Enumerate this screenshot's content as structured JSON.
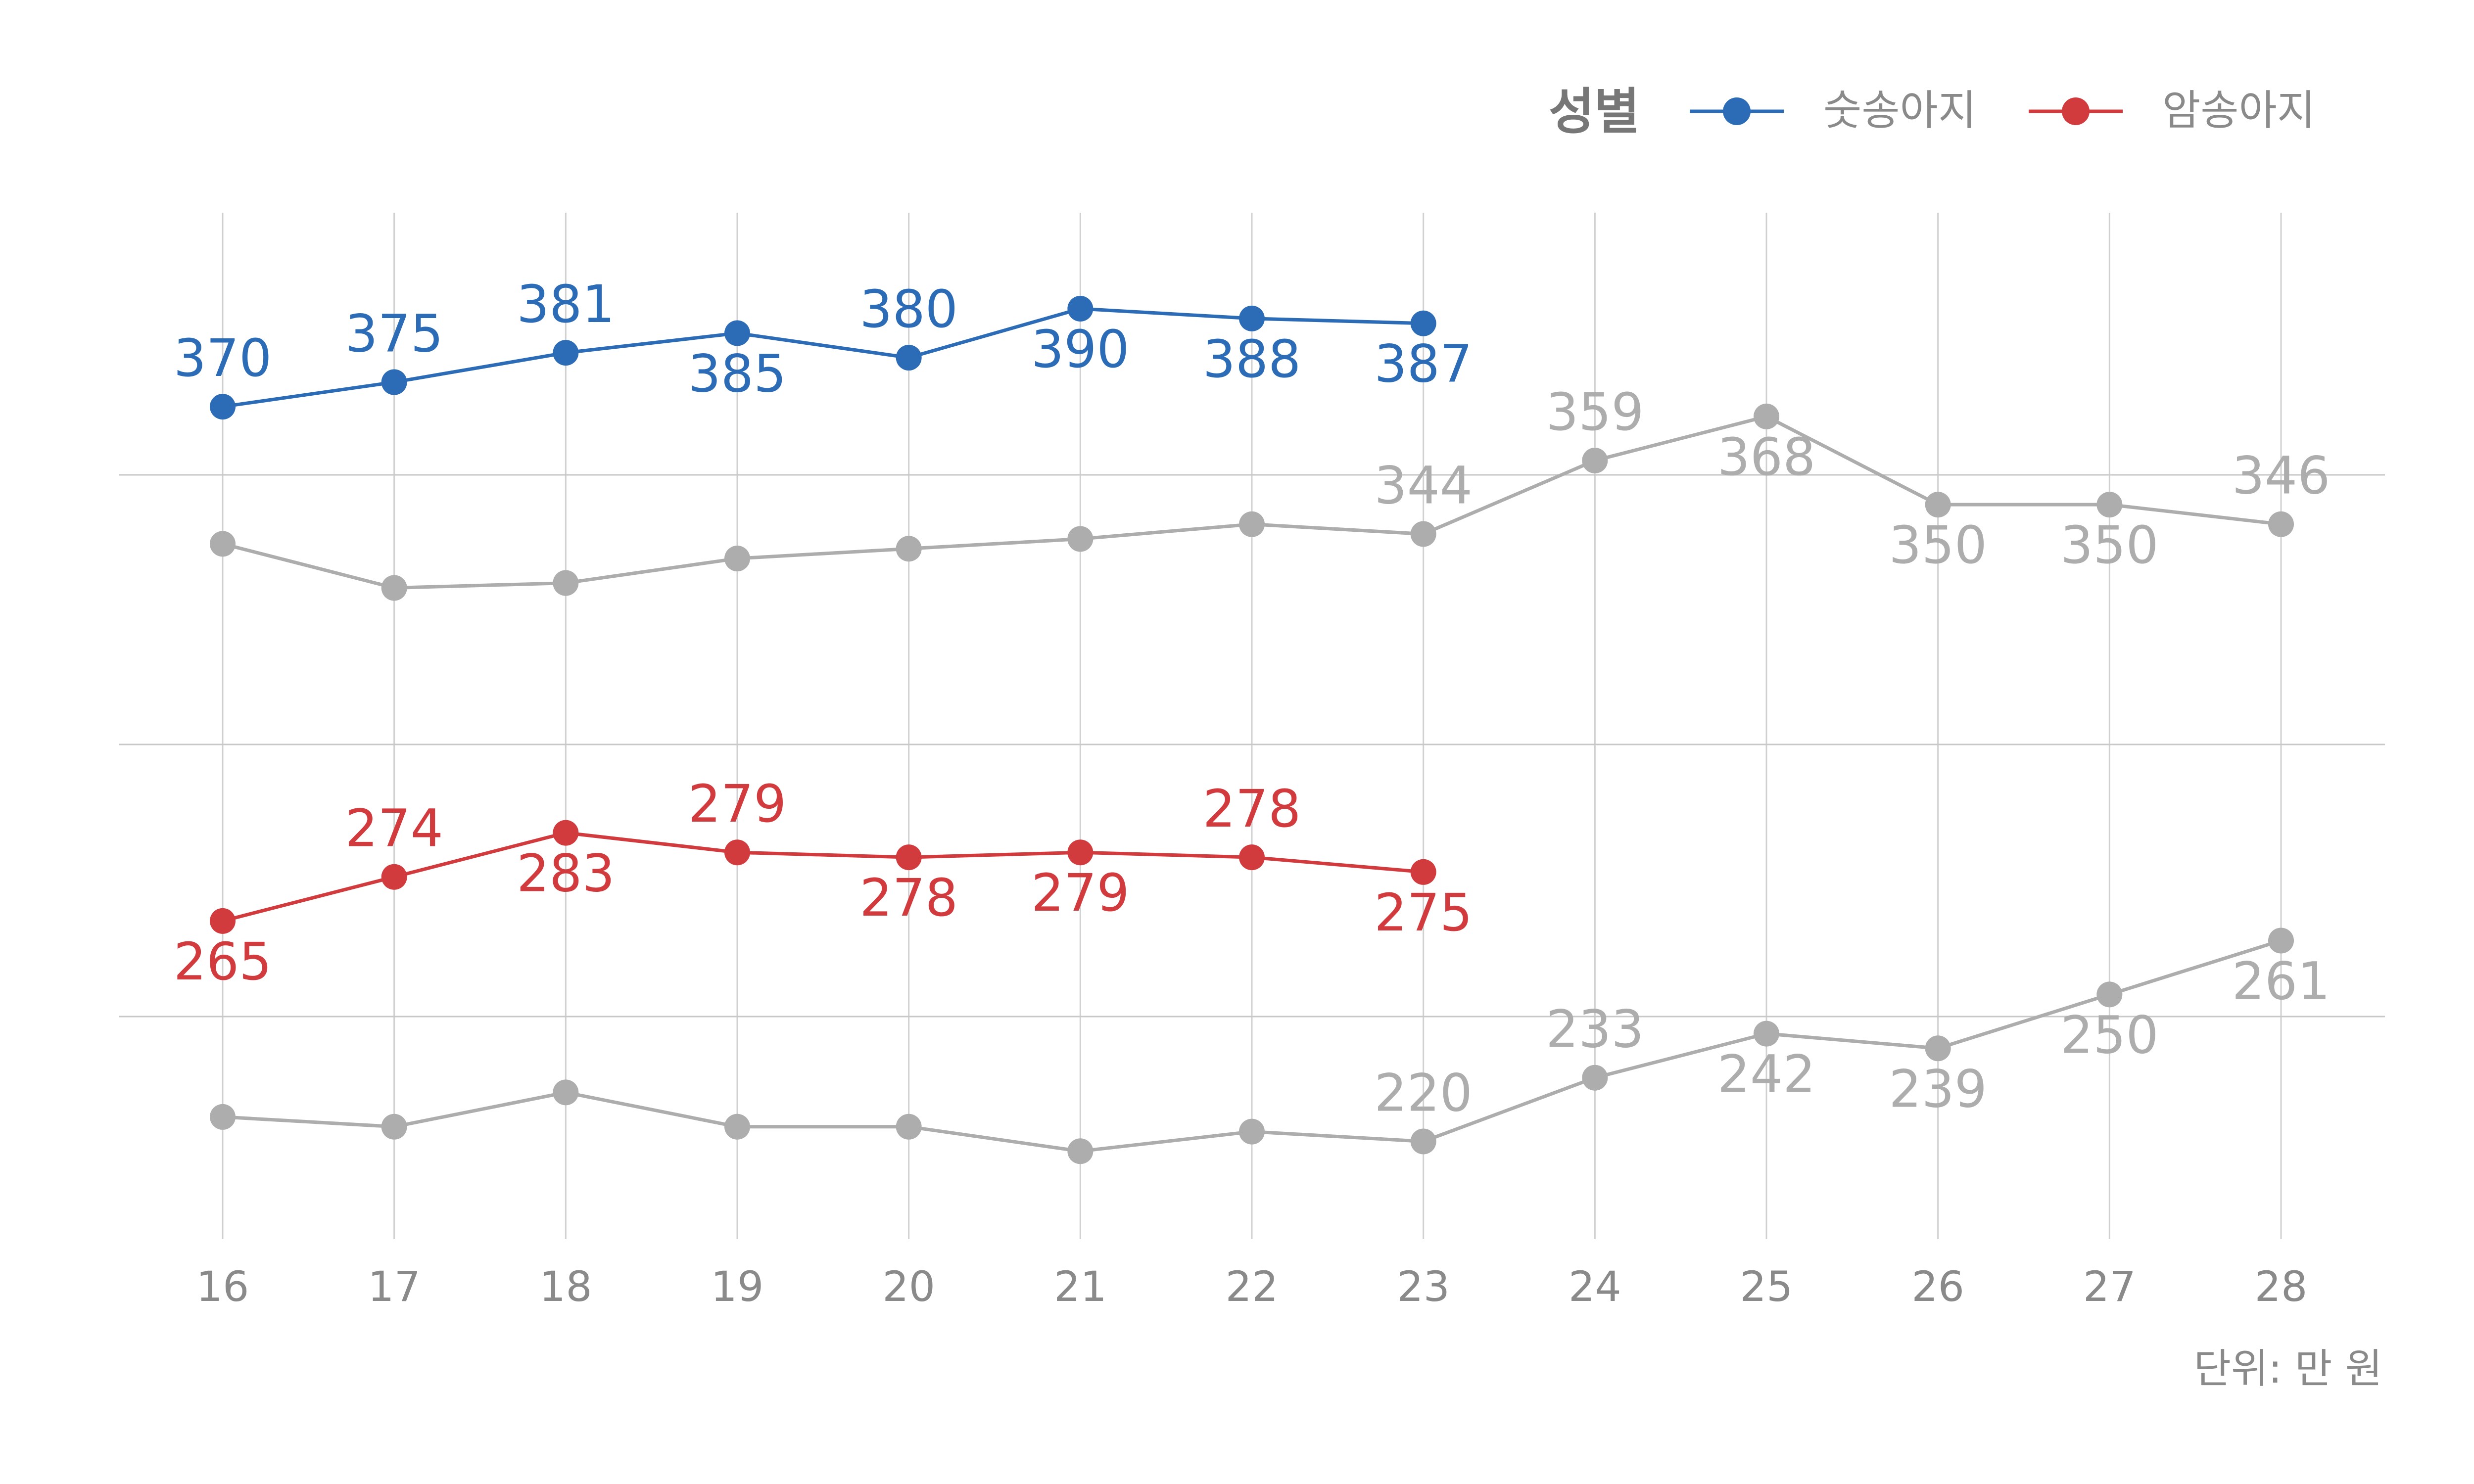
{
  "chart_data": {
    "type": "line",
    "categories": [
      "16",
      "17",
      "18",
      "19",
      "20",
      "21",
      "22",
      "23",
      "24",
      "25",
      "26",
      "27",
      "28"
    ],
    "legend": {
      "title": "성별",
      "placement": "top-right"
    },
    "unit_label": "단위: 만 원",
    "grid": true,
    "ylim": [
      195,
      400
    ],
    "series": [
      {
        "name": "숫송아지",
        "color": "#2C6BB5",
        "highlight": true,
        "values": [
          370,
          375,
          381,
          385,
          380,
          390,
          388,
          387,
          null,
          null,
          null,
          null,
          null
        ],
        "label_pos": [
          "above",
          "above",
          "above",
          "below",
          "above",
          "below",
          "below",
          "below",
          null,
          null,
          null,
          null,
          null
        ]
      },
      {
        "name": "암송아지",
        "color": "#D23B3E",
        "highlight": true,
        "values": [
          265,
          274,
          283,
          279,
          278,
          279,
          278,
          275,
          null,
          null,
          null,
          null,
          null
        ],
        "label_pos": [
          "below",
          "above",
          "below",
          "above",
          "below",
          "below",
          "above",
          "below",
          null,
          null,
          null,
          null,
          null
        ]
      },
      {
        "name": "",
        "color": "#ADADAD",
        "highlight": false,
        "values": [
          342,
          333,
          334,
          339,
          341,
          343,
          346,
          344,
          359,
          368,
          350,
          350,
          346
        ],
        "label_pos": [
          null,
          null,
          null,
          null,
          null,
          null,
          null,
          "above",
          "above",
          "below",
          "below",
          "below",
          "above"
        ]
      },
      {
        "name": "",
        "color": "#ADADAD",
        "highlight": false,
        "values": [
          225,
          223,
          230,
          223,
          223,
          218,
          222,
          220,
          233,
          242,
          239,
          250,
          261
        ],
        "label_pos": [
          null,
          null,
          null,
          null,
          null,
          null,
          null,
          "above",
          "above",
          "below",
          "below",
          "below",
          "below"
        ]
      }
    ]
  }
}
